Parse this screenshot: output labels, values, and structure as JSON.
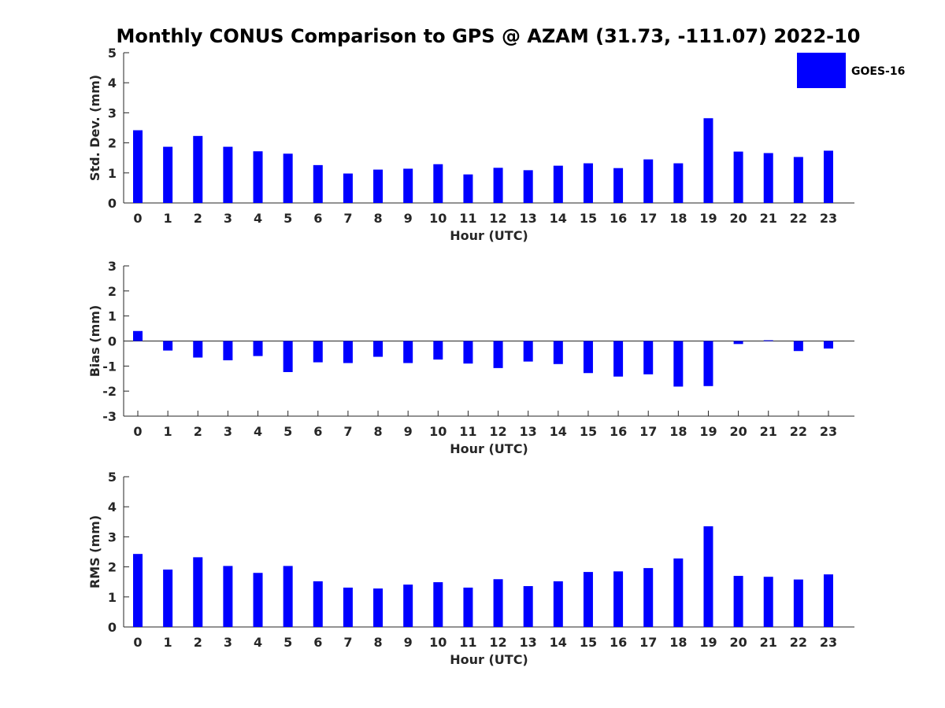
{
  "title": "Monthly CONUS Comparison to GPS @ AZAM (31.73, -111.07) 2022-10",
  "legend": {
    "label": "GOES-16",
    "color": "#0000ff",
    "placement": "top-right"
  },
  "chart_data": [
    {
      "type": "bar",
      "xlabel": "Hour (UTC)",
      "ylabel": "Std. Dev. (mm)",
      "ylim": [
        0,
        5
      ],
      "yticks": [
        0,
        1,
        2,
        3,
        4,
        5
      ],
      "categories": [
        "0",
        "1",
        "2",
        "3",
        "4",
        "5",
        "6",
        "7",
        "8",
        "9",
        "10",
        "11",
        "12",
        "13",
        "14",
        "15",
        "16",
        "17",
        "18",
        "19",
        "20",
        "21",
        "22",
        "23"
      ],
      "series": [
        {
          "name": "GOES-16",
          "color": "#0000ff",
          "values": [
            2.42,
            1.87,
            2.23,
            1.87,
            1.72,
            1.64,
            1.26,
            0.98,
            1.11,
            1.14,
            1.29,
            0.95,
            1.17,
            1.09,
            1.24,
            1.32,
            1.16,
            1.45,
            1.32,
            2.82,
            1.71,
            1.66,
            1.53,
            1.74
          ]
        }
      ]
    },
    {
      "type": "bar",
      "xlabel": "Hour (UTC)",
      "ylabel": "Bias (mm)",
      "ylim": [
        -3,
        3
      ],
      "yticks": [
        -3,
        -2,
        -1,
        0,
        1,
        2,
        3
      ],
      "categories": [
        "0",
        "1",
        "2",
        "3",
        "4",
        "5",
        "6",
        "7",
        "8",
        "9",
        "10",
        "11",
        "12",
        "13",
        "14",
        "15",
        "16",
        "17",
        "18",
        "19",
        "20",
        "21",
        "22",
        "23"
      ],
      "series": [
        {
          "name": "GOES-16",
          "color": "#0000ff",
          "values": [
            0.4,
            -0.38,
            -0.66,
            -0.77,
            -0.6,
            -1.24,
            -0.85,
            -0.88,
            -0.63,
            -0.88,
            -0.74,
            -0.9,
            -1.08,
            -0.82,
            -0.92,
            -1.28,
            -1.42,
            -1.33,
            -1.82,
            -1.8,
            -0.12,
            0.03,
            -0.4,
            -0.3
          ]
        }
      ]
    },
    {
      "type": "bar",
      "xlabel": "Hour (UTC)",
      "ylabel": "RMS (mm)",
      "ylim": [
        0,
        5
      ],
      "yticks": [
        0,
        1,
        2,
        3,
        4,
        5
      ],
      "categories": [
        "0",
        "1",
        "2",
        "3",
        "4",
        "5",
        "6",
        "7",
        "8",
        "9",
        "10",
        "11",
        "12",
        "13",
        "14",
        "15",
        "16",
        "17",
        "18",
        "19",
        "20",
        "21",
        "22",
        "23"
      ],
      "series": [
        {
          "name": "GOES-16",
          "color": "#0000ff",
          "values": [
            2.43,
            1.91,
            2.32,
            2.03,
            1.8,
            2.03,
            1.52,
            1.31,
            1.28,
            1.41,
            1.49,
            1.31,
            1.59,
            1.36,
            1.52,
            1.83,
            1.85,
            1.96,
            2.28,
            3.35,
            1.7,
            1.67,
            1.58,
            1.75
          ]
        }
      ]
    }
  ]
}
